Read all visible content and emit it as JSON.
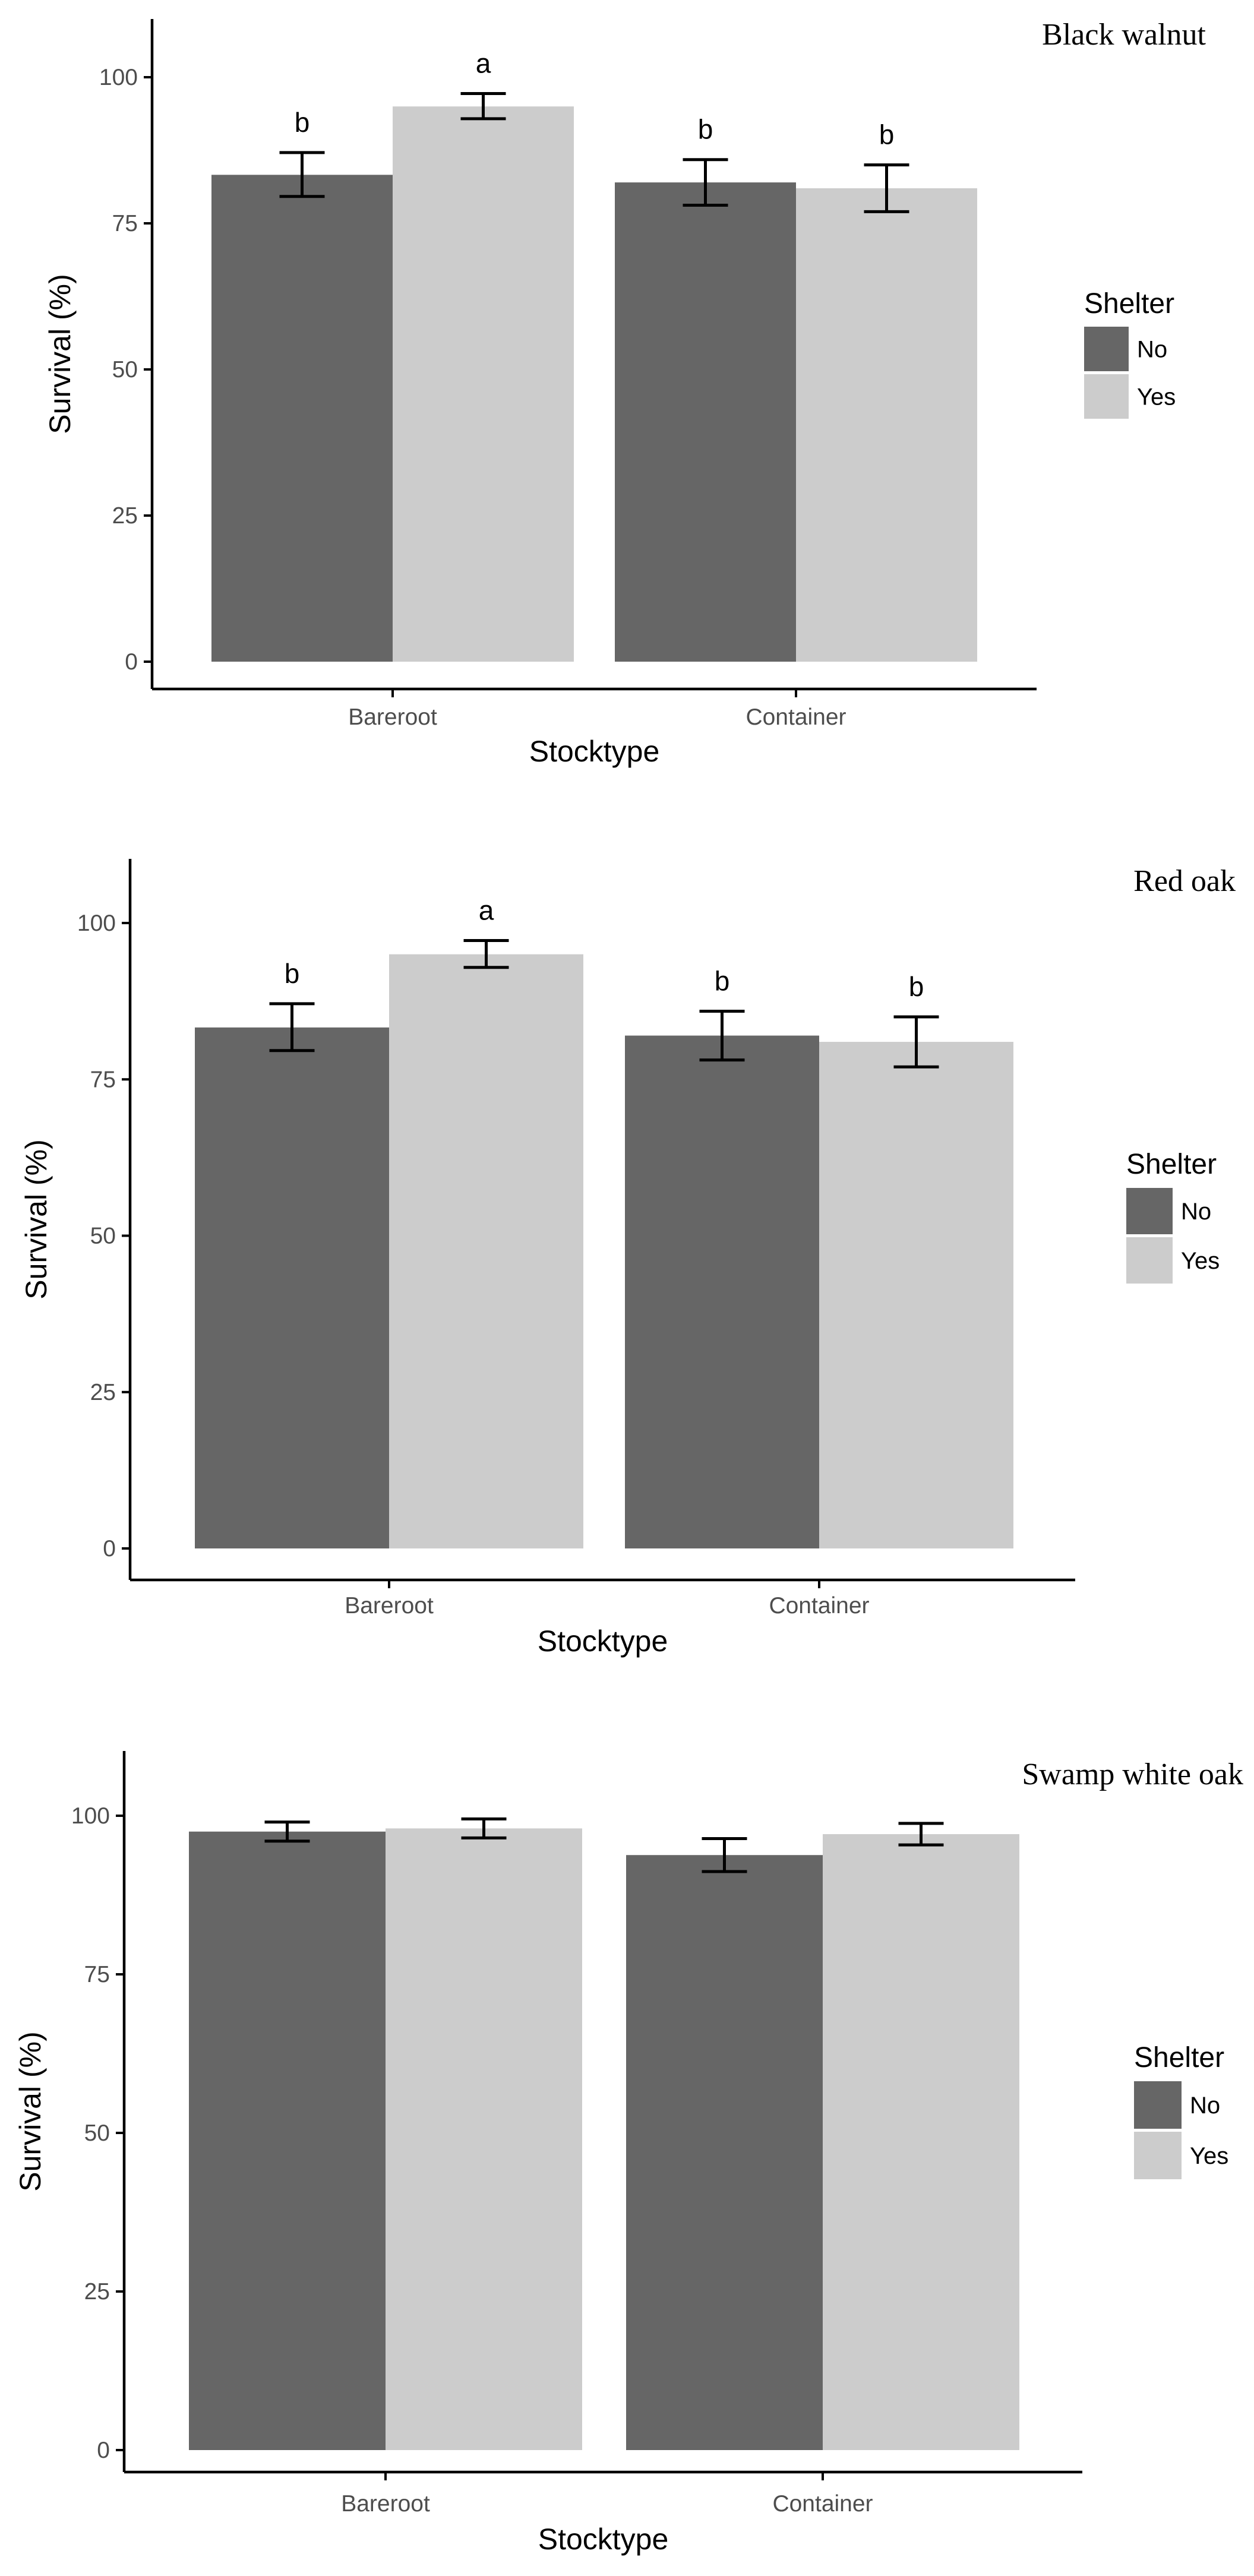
{
  "chart_data": [
    {
      "type": "bar",
      "title": "Black walnut",
      "xlabel": "Stocktype",
      "ylabel": "Survival (%)",
      "categories": [
        "Bareroot",
        "Container"
      ],
      "ylim": [
        0,
        110
      ],
      "yticks": [
        0,
        25,
        50,
        75,
        100
      ],
      "grid": false,
      "legend": {
        "title": "Shelter",
        "placement": "right"
      },
      "series": [
        {
          "name": "No",
          "color": "#666666",
          "values": [
            83.3,
            82.0
          ],
          "err_low": [
            79.6,
            78.1
          ],
          "err_high": [
            87.1,
            85.9
          ],
          "labels": [
            "b",
            "b"
          ]
        },
        {
          "name": "Yes",
          "color": "#cccccc",
          "values": [
            95.0,
            81.0
          ],
          "err_low": [
            92.9,
            77.0
          ],
          "err_high": [
            97.2,
            85.0
          ],
          "labels": [
            "a",
            "b"
          ]
        }
      ]
    },
    {
      "type": "bar",
      "title": "Red oak",
      "xlabel": "Stocktype",
      "ylabel": "Survival (%)",
      "categories": [
        "Bareroot",
        "Container"
      ],
      "ylim": [
        0,
        110
      ],
      "yticks": [
        0,
        25,
        50,
        75,
        100
      ],
      "grid": false,
      "legend": {
        "title": "Shelter",
        "placement": "right"
      },
      "series": [
        {
          "name": "No",
          "color": "#666666",
          "values": [
            83.3,
            82.0
          ],
          "err_low": [
            79.6,
            78.1
          ],
          "err_high": [
            87.1,
            85.9
          ],
          "labels": [
            "b",
            "b"
          ]
        },
        {
          "name": "Yes",
          "color": "#cccccc",
          "values": [
            95.0,
            81.0
          ],
          "err_low": [
            92.9,
            77.0
          ],
          "err_high": [
            97.2,
            85.0
          ],
          "labels": [
            "a",
            "b"
          ]
        }
      ]
    },
    {
      "type": "bar",
      "title": "Swamp white oak",
      "xlabel": "Stocktype",
      "ylabel": "Survival (%)",
      "categories": [
        "Bareroot",
        "Container"
      ],
      "ylim": [
        0,
        110
      ],
      "yticks": [
        0,
        25,
        50,
        75,
        100
      ],
      "grid": false,
      "legend": {
        "title": "Shelter",
        "placement": "right"
      },
      "series": [
        {
          "name": "No",
          "color": "#666666",
          "values": [
            97.5,
            93.8
          ],
          "err_low": [
            96.0,
            91.2
          ],
          "err_high": [
            99.0,
            96.4
          ],
          "labels": [
            "",
            ""
          ]
        },
        {
          "name": "Yes",
          "color": "#cccccc",
          "values": [
            98.0,
            97.1
          ],
          "err_low": [
            96.5,
            95.4
          ],
          "err_high": [
            99.5,
            98.8
          ],
          "labels": [
            "",
            ""
          ]
        }
      ]
    }
  ]
}
